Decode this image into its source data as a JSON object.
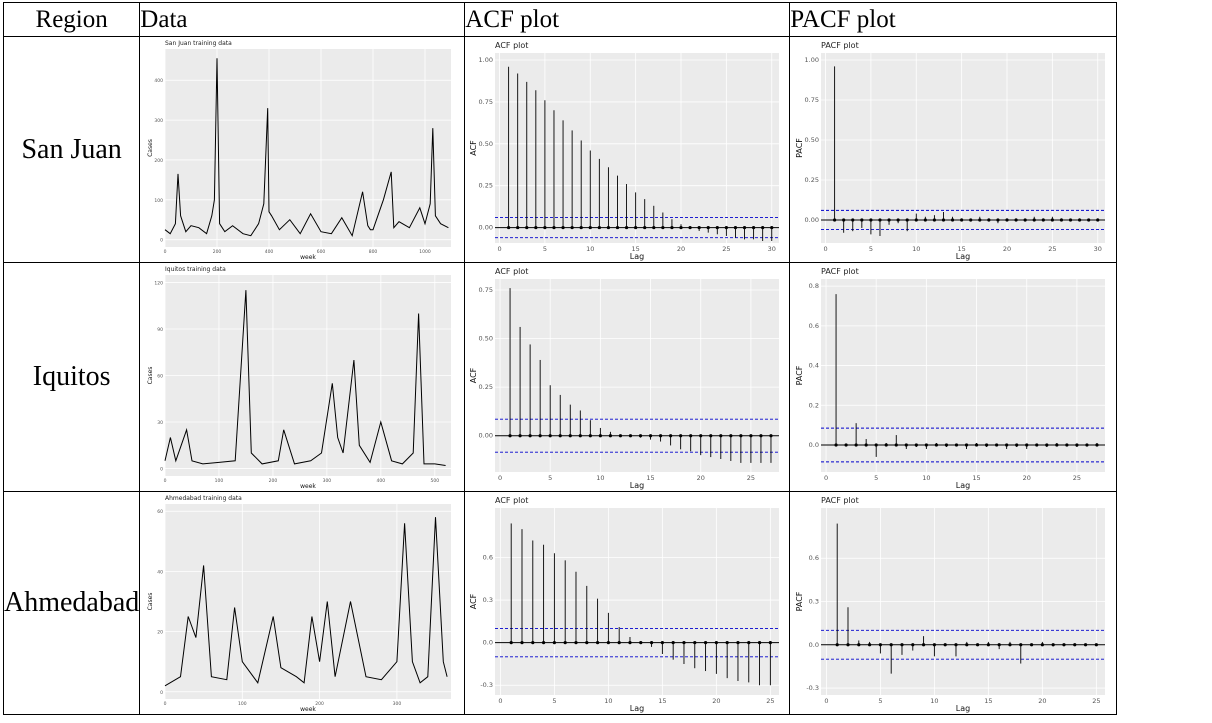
{
  "headers": [
    "Region",
    "Data",
    "ACF plot",
    "PACF plot"
  ],
  "rows": [
    {
      "region": "San Juan",
      "data_plot": {
        "title": "San Juan training data",
        "xlabel": "week",
        "ylabel": "Cases",
        "xticks": [
          "0",
          "200",
          "400",
          "600",
          "800",
          "1000"
        ],
        "yticks": [
          "0",
          "100",
          "200",
          "300",
          "400"
        ]
      },
      "acf_plot": {
        "title": "ACF plot",
        "xlabel": "Lag",
        "ylabel": "ACF",
        "xticks": [
          "0",
          "5",
          "10",
          "15",
          "20",
          "25",
          "30"
        ],
        "yticks": [
          "0.00",
          "0.25",
          "0.50",
          "0.75",
          "1.00"
        ]
      },
      "pacf_plot": {
        "title": "PACF plot",
        "xlabel": "Lag",
        "ylabel": "PACF",
        "xticks": [
          "0",
          "5",
          "10",
          "15",
          "20",
          "25",
          "30"
        ],
        "yticks": [
          "0.00",
          "0.25",
          "0.50",
          "0.75",
          "1.00"
        ]
      }
    },
    {
      "region": "Iquitos",
      "data_plot": {
        "title": "Iquitos training data",
        "xlabel": "week",
        "ylabel": "Cases",
        "xticks": [
          "0",
          "100",
          "200",
          "300",
          "400",
          "500"
        ],
        "yticks": [
          "0",
          "30",
          "60",
          "90",
          "120"
        ]
      },
      "acf_plot": {
        "title": "ACF plot",
        "xlabel": "Lag",
        "ylabel": "ACF",
        "xticks": [
          "0",
          "5",
          "10",
          "15",
          "20",
          "25"
        ],
        "yticks": [
          "0.00",
          "0.25",
          "0.50",
          "0.75"
        ]
      },
      "pacf_plot": {
        "title": "PACF plot",
        "xlabel": "Lag",
        "ylabel": "PACF",
        "xticks": [
          "0",
          "5",
          "10",
          "15",
          "20",
          "25"
        ],
        "yticks": [
          "0.0",
          "0.2",
          "0.4",
          "0.6",
          "0.8"
        ]
      }
    },
    {
      "region": "Ahmedabad",
      "data_plot": {
        "title": "Ahmedabad training data",
        "xlabel": "week",
        "ylabel": "Cases",
        "xticks": [
          "0",
          "100",
          "200",
          "300"
        ],
        "yticks": [
          "0",
          "20",
          "40",
          "60"
        ]
      },
      "acf_plot": {
        "title": "ACF plot",
        "xlabel": "Lag",
        "ylabel": "ACF",
        "xticks": [
          "0",
          "5",
          "10",
          "15",
          "20",
          "25"
        ],
        "yticks": [
          "-0.3",
          "0.0",
          "0.3",
          "0.6"
        ]
      },
      "pacf_plot": {
        "title": "PACF plot",
        "xlabel": "Lag",
        "ylabel": "PACF",
        "xticks": [
          "0",
          "5",
          "10",
          "15",
          "20",
          "25"
        ],
        "yticks": [
          "-0.3",
          "0.0",
          "0.3",
          "0.6"
        ]
      }
    }
  ],
  "colors": {
    "panel": "#ebebeb",
    "grid": "#ffffff",
    "line": "#000000",
    "confidence": "#0000cc"
  },
  "chart_data": [
    {
      "type": "line",
      "title": "San Juan training data",
      "xlabel": "week",
      "ylabel": "Cases",
      "xlim": [
        0,
        1100
      ],
      "ylim": [
        0,
        460
      ],
      "x": [
        0,
        20,
        40,
        50,
        60,
        80,
        100,
        130,
        160,
        180,
        190,
        200,
        210,
        230,
        260,
        300,
        330,
        360,
        380,
        395,
        400,
        410,
        440,
        480,
        520,
        560,
        600,
        640,
        680,
        720,
        760,
        780,
        790,
        800,
        840,
        870,
        880,
        900,
        940,
        980,
        1000,
        1020,
        1030,
        1040,
        1060,
        1090
      ],
      "y": [
        25,
        15,
        40,
        165,
        60,
        20,
        35,
        30,
        15,
        60,
        100,
        455,
        40,
        20,
        35,
        15,
        10,
        40,
        90,
        330,
        70,
        60,
        25,
        50,
        15,
        65,
        20,
        15,
        55,
        10,
        120,
        35,
        25,
        25,
        100,
        170,
        30,
        45,
        30,
        80,
        40,
        90,
        280,
        60,
        40,
        30
      ]
    },
    {
      "type": "bar",
      "title": "ACF plot",
      "xlabel": "Lag",
      "ylabel": "ACF",
      "ylim": [
        -0.05,
        1.0
      ],
      "confidence": 0.06,
      "x": [
        1,
        2,
        3,
        4,
        5,
        6,
        7,
        8,
        9,
        10,
        11,
        12,
        13,
        14,
        15,
        16,
        17,
        18,
        19,
        20,
        21,
        22,
        23,
        24,
        25,
        26,
        27,
        28,
        29,
        30
      ],
      "values": [
        0.96,
        0.92,
        0.87,
        0.82,
        0.76,
        0.7,
        0.64,
        0.58,
        0.52,
        0.46,
        0.41,
        0.36,
        0.31,
        0.26,
        0.21,
        0.17,
        0.13,
        0.09,
        0.05,
        0.02,
        0.0,
        -0.02,
        -0.03,
        -0.04,
        -0.05,
        -0.06,
        -0.07,
        -0.07,
        -0.08,
        -0.08
      ]
    },
    {
      "type": "bar",
      "title": "PACF plot",
      "xlabel": "Lag",
      "ylabel": "PACF",
      "ylim": [
        -0.1,
        1.0
      ],
      "confidence": 0.06,
      "x": [
        1,
        2,
        3,
        4,
        5,
        6,
        7,
        8,
        9,
        10,
        11,
        12,
        13,
        14,
        15,
        16,
        17,
        18,
        19,
        20,
        21,
        22,
        23,
        24,
        25,
        26,
        27,
        28,
        29,
        30
      ],
      "values": [
        0.96,
        -0.08,
        -0.07,
        -0.05,
        -0.09,
        -0.1,
        -0.03,
        -0.02,
        -0.07,
        0.04,
        0.02,
        0.03,
        0.05,
        0.02,
        0.01,
        -0.01,
        0.02,
        0.01,
        -0.02,
        0.01,
        0.01,
        -0.01,
        0.02,
        0.01,
        0.02,
        0.01,
        0.0,
        0.01,
        0.0,
        0.01
      ]
    },
    {
      "type": "line",
      "title": "Iquitos training data",
      "xlabel": "week",
      "ylabel": "Cases",
      "xlim": [
        0,
        530
      ],
      "ylim": [
        0,
        120
      ],
      "x": [
        0,
        10,
        20,
        30,
        40,
        50,
        70,
        100,
        130,
        150,
        160,
        180,
        210,
        220,
        240,
        270,
        290,
        310,
        320,
        330,
        350,
        360,
        380,
        400,
        420,
        440,
        460,
        470,
        480,
        500,
        520
      ],
      "y": [
        5,
        20,
        5,
        15,
        25,
        5,
        3,
        4,
        5,
        115,
        10,
        3,
        5,
        25,
        3,
        5,
        10,
        55,
        20,
        10,
        70,
        15,
        4,
        30,
        5,
        3,
        10,
        100,
        3,
        3,
        2
      ]
    },
    {
      "type": "bar",
      "title": "ACF plot",
      "xlabel": "Lag",
      "ylabel": "ACF",
      "ylim": [
        -0.15,
        0.77
      ],
      "confidence": 0.085,
      "x": [
        1,
        2,
        3,
        4,
        5,
        6,
        7,
        8,
        9,
        10,
        11,
        12,
        13,
        14,
        15,
        16,
        17,
        18,
        19,
        20,
        21,
        22,
        23,
        24,
        25,
        26,
        27
      ],
      "values": [
        0.76,
        0.56,
        0.47,
        0.39,
        0.26,
        0.21,
        0.16,
        0.13,
        0.08,
        0.04,
        0.02,
        0.0,
        0.0,
        -0.01,
        -0.02,
        -0.03,
        -0.05,
        -0.07,
        -0.08,
        -0.1,
        -0.11,
        -0.12,
        -0.13,
        -0.14,
        -0.14,
        -0.14,
        -0.14
      ]
    },
    {
      "type": "bar",
      "title": "PACF plot",
      "xlabel": "Lag",
      "ylabel": "PACF",
      "ylim": [
        -0.1,
        0.8
      ],
      "confidence": 0.085,
      "x": [
        1,
        2,
        3,
        4,
        5,
        6,
        7,
        8,
        9,
        10,
        11,
        12,
        13,
        14,
        15,
        16,
        17,
        18,
        19,
        20,
        21,
        22,
        23,
        24,
        25,
        26,
        27
      ],
      "values": [
        0.76,
        0.0,
        0.11,
        0.03,
        -0.06,
        0.01,
        0.05,
        -0.02,
        -0.01,
        -0.02,
        0.01,
        -0.01,
        0.0,
        -0.02,
        0.01,
        -0.01,
        0.0,
        -0.02,
        -0.01,
        -0.02,
        0.0,
        -0.01,
        0.01,
        0.0,
        -0.01,
        0.0,
        0.01
      ]
    },
    {
      "type": "line",
      "title": "Ahmedabad training data",
      "xlabel": "week",
      "ylabel": "Cases",
      "xlim": [
        0,
        370
      ],
      "ylim": [
        0,
        60
      ],
      "x": [
        0,
        20,
        30,
        40,
        50,
        60,
        80,
        90,
        100,
        120,
        140,
        150,
        170,
        180,
        190,
        200,
        210,
        220,
        240,
        260,
        280,
        300,
        310,
        320,
        330,
        340,
        350,
        360,
        365
      ],
      "y": [
        2,
        5,
        25,
        18,
        42,
        5,
        4,
        28,
        10,
        3,
        25,
        8,
        5,
        3,
        25,
        10,
        30,
        5,
        30,
        5,
        4,
        10,
        56,
        10,
        3,
        5,
        58,
        10,
        5
      ]
    },
    {
      "type": "bar",
      "title": "ACF plot",
      "xlabel": "Lag",
      "ylabel": "ACF",
      "ylim": [
        -0.32,
        0.9
      ],
      "confidence": 0.1,
      "x": [
        1,
        2,
        3,
        4,
        5,
        6,
        7,
        8,
        9,
        10,
        11,
        12,
        13,
        14,
        15,
        16,
        17,
        18,
        19,
        20,
        21,
        22,
        23,
        24,
        25
      ],
      "values": [
        0.84,
        0.8,
        0.72,
        0.69,
        0.63,
        0.58,
        0.5,
        0.4,
        0.31,
        0.21,
        0.11,
        0.04,
        0.0,
        -0.03,
        -0.08,
        -0.12,
        -0.15,
        -0.18,
        -0.2,
        -0.22,
        -0.25,
        -0.27,
        -0.28,
        -0.3,
        -0.3
      ]
    },
    {
      "type": "bar",
      "title": "PACF plot",
      "xlabel": "Lag",
      "ylabel": "PACF",
      "ylim": [
        -0.3,
        0.9
      ],
      "confidence": 0.1,
      "x": [
        1,
        2,
        3,
        4,
        5,
        6,
        7,
        8,
        9,
        10,
        11,
        12,
        13,
        14,
        15,
        16,
        17,
        18,
        19,
        20,
        21,
        22,
        23,
        24,
        25
      ],
      "values": [
        0.84,
        0.26,
        0.03,
        0.02,
        -0.06,
        -0.2,
        -0.07,
        -0.04,
        0.06,
        -0.08,
        0.01,
        -0.08,
        0.02,
        0.0,
        0.02,
        -0.03,
        0.02,
        -0.13,
        0.0,
        0.02,
        -0.01,
        0.0,
        0.01,
        0.0,
        0.0
      ]
    }
  ]
}
